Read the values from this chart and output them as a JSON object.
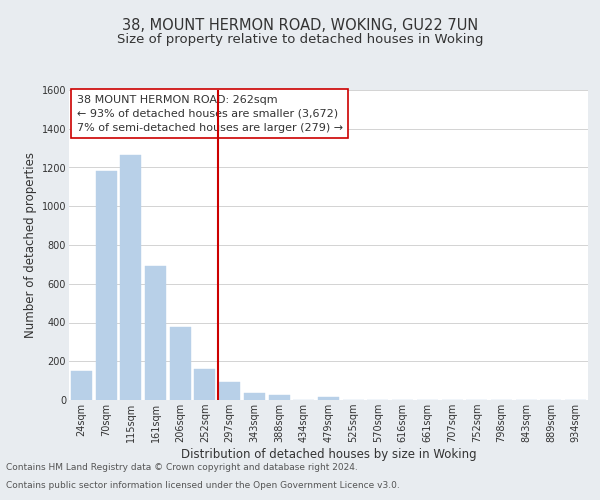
{
  "title": "38, MOUNT HERMON ROAD, WOKING, GU22 7UN",
  "subtitle": "Size of property relative to detached houses in Woking",
  "xlabel": "Distribution of detached houses by size in Woking",
  "ylabel": "Number of detached properties",
  "bin_labels": [
    "24sqm",
    "70sqm",
    "115sqm",
    "161sqm",
    "206sqm",
    "252sqm",
    "297sqm",
    "343sqm",
    "388sqm",
    "434sqm",
    "479sqm",
    "525sqm",
    "570sqm",
    "616sqm",
    "661sqm",
    "707sqm",
    "752sqm",
    "798sqm",
    "843sqm",
    "889sqm",
    "934sqm"
  ],
  "bar_heights": [
    148,
    1180,
    1265,
    690,
    375,
    160,
    93,
    38,
    25,
    0,
    15,
    0,
    0,
    0,
    0,
    0,
    0,
    0,
    0,
    0,
    0
  ],
  "bar_color": "#b8d0e8",
  "bar_edge_color": "#b8d0e8",
  "vline_x": 5.52,
  "vline_color": "#cc0000",
  "annotation_text": "38 MOUNT HERMON ROAD: 262sqm\n← 93% of detached houses are smaller (3,672)\n7% of semi-detached houses are larger (279) →",
  "annotation_box_color": "#ffffff",
  "annotation_box_edge": "#cc0000",
  "ylim": [
    0,
    1600
  ],
  "yticks": [
    0,
    200,
    400,
    600,
    800,
    1000,
    1200,
    1400,
    1600
  ],
  "footer_line1": "Contains HM Land Registry data © Crown copyright and database right 2024.",
  "footer_line2": "Contains public sector information licensed under the Open Government Licence v3.0.",
  "bg_color": "#e8ecf0",
  "plot_bg_color": "#ffffff",
  "title_fontsize": 10.5,
  "subtitle_fontsize": 9.5,
  "axis_label_fontsize": 8.5,
  "tick_fontsize": 7,
  "annotation_fontsize": 8,
  "footer_fontsize": 6.5
}
